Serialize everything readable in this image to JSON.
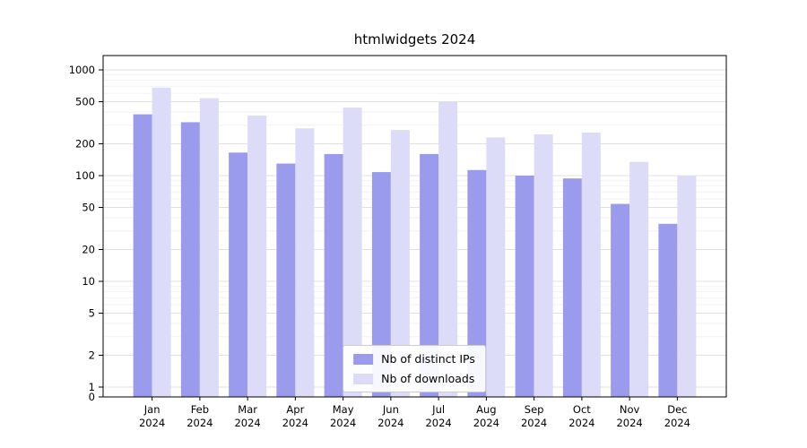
{
  "chart_data": {
    "type": "bar",
    "title": "htmlwidgets 2024",
    "categories": [
      "Jan",
      "Feb",
      "Mar",
      "Apr",
      "May",
      "Jun",
      "Jul",
      "Aug",
      "Sep",
      "Oct",
      "Nov",
      "Dec"
    ],
    "category_year": "2024",
    "series": [
      {
        "name": "Nb of distinct IPs",
        "color": "#9b9bee",
        "values": [
          380,
          320,
          165,
          130,
          160,
          108,
          160,
          113,
          100,
          94,
          54,
          35
        ]
      },
      {
        "name": "Nb of downloads",
        "color": "#dcdcf8",
        "values": [
          680,
          540,
          370,
          280,
          440,
          270,
          500,
          230,
          245,
          255,
          135,
          100
        ]
      }
    ],
    "y_ticks": [
      0,
      1,
      2,
      5,
      10,
      20,
      50,
      100,
      200,
      500,
      1000
    ],
    "y_scale": "log",
    "ylim": [
      0,
      1400
    ],
    "xlabel": "",
    "ylabel": "",
    "grid": true,
    "legend_position": "lower center"
  },
  "colors": {
    "grid_major": "#e0e0e0",
    "grid_minor": "#f2f2f2",
    "axis": "#000000",
    "background": "#ffffff"
  }
}
